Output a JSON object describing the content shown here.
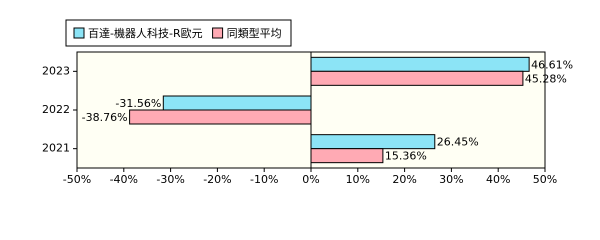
{
  "chart_data": {
    "type": "hbar",
    "categories": [
      "2023",
      "2022",
      "2021"
    ],
    "series": [
      {
        "name": "百達-機器人科技-R歐元",
        "color": "#8ce4f6",
        "values": [
          46.61,
          -31.56,
          26.45
        ],
        "value_labels": [
          "46.61%",
          "-31.56%",
          "26.45%"
        ]
      },
      {
        "name": "同類型平均",
        "color": "#ffaab4",
        "values": [
          45.28,
          -38.76,
          15.36
        ],
        "value_labels": [
          "45.28%",
          "-38.76%",
          "15.36%"
        ]
      }
    ],
    "xlim": [
      -50,
      50
    ],
    "xticks": [
      {
        "value": -50,
        "label": "-50%"
      },
      {
        "value": -40,
        "label": "-40%"
      },
      {
        "value": -30,
        "label": "-30%"
      },
      {
        "value": -20,
        "label": "-20%"
      },
      {
        "value": -10,
        "label": "-10%"
      },
      {
        "value": 0,
        "label": "0%"
      },
      {
        "value": 10,
        "label": "10%"
      },
      {
        "value": 20,
        "label": "20%"
      },
      {
        "value": 30,
        "label": "30%"
      },
      {
        "value": 40,
        "label": "40%"
      },
      {
        "value": 50,
        "label": "50%"
      }
    ],
    "legend": "top-left"
  }
}
